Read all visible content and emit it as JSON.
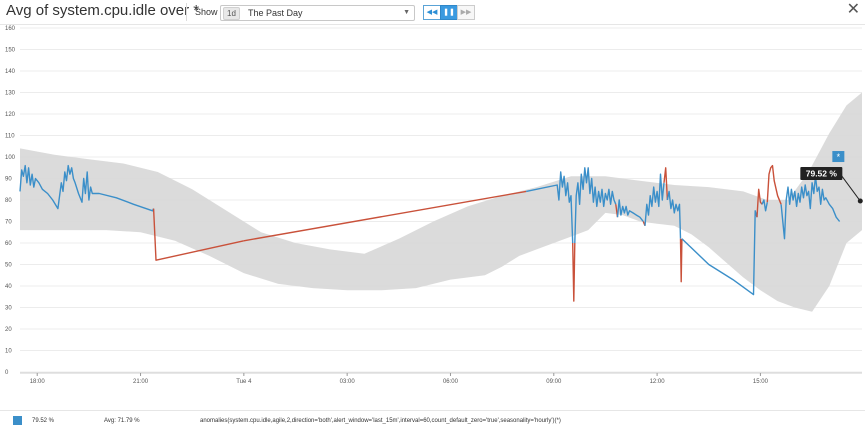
{
  "header": {
    "title": "Avg of system.cpu.idle over *",
    "show_label": "Show",
    "timeframe_badge": "1d",
    "timeframe_label": "The Past Day",
    "dropdown_arrow": "▼",
    "controls": [
      {
        "name": "rewind-button",
        "glyph": "◀◀",
        "state": "normal"
      },
      {
        "name": "pause-button",
        "glyph": "❚❚",
        "state": "active"
      },
      {
        "name": "fast-forward-button",
        "glyph": "▶▶",
        "state": "disabled"
      }
    ],
    "close_glyph": "✕"
  },
  "colors": {
    "series": "#3b8fc9",
    "anomaly": "#c9513a",
    "band": "#d9d9d9",
    "grid": "#ececec"
  },
  "chart_data": {
    "type": "line",
    "ylim": [
      0,
      160
    ],
    "yticks": [
      0,
      10,
      20,
      30,
      40,
      50,
      60,
      70,
      80,
      90,
      100,
      110,
      120,
      130,
      140,
      150,
      160
    ],
    "x_range": [
      17.5,
      41.95
    ],
    "xticks": [
      {
        "label": "18:00",
        "x": 18
      },
      {
        "label": "21:00",
        "x": 21
      },
      {
        "label": "Tue 4",
        "x": 24
      },
      {
        "label": "03:00",
        "x": 27
      },
      {
        "label": "06:00",
        "x": 30
      },
      {
        "label": "09:00",
        "x": 33
      },
      {
        "label": "12:00",
        "x": 36
      },
      {
        "label": "15:00",
        "x": 39
      }
    ],
    "band_upper": [
      [
        17.5,
        104
      ],
      [
        18.5,
        101
      ],
      [
        19.5,
        99
      ],
      [
        20.5,
        97
      ],
      [
        21.5,
        93
      ],
      [
        22.5,
        85
      ],
      [
        23.5,
        75
      ],
      [
        24.5,
        65
      ],
      [
        25.5,
        60
      ],
      [
        26.5,
        57
      ],
      [
        27.5,
        55
      ],
      [
        28.5,
        62
      ],
      [
        29.5,
        70
      ],
      [
        30.5,
        77
      ],
      [
        31.5,
        82
      ],
      [
        32.5,
        86
      ],
      [
        33.5,
        91
      ],
      [
        34.5,
        91
      ],
      [
        35.5,
        89
      ],
      [
        36.5,
        87
      ],
      [
        37.5,
        86
      ],
      [
        38.5,
        84
      ],
      [
        39.2,
        80
      ],
      [
        39.8,
        80
      ],
      [
        40.4,
        93
      ],
      [
        41.0,
        111
      ],
      [
        41.5,
        124
      ],
      [
        41.95,
        130
      ]
    ],
    "band_lower": [
      [
        41.95,
        66
      ],
      [
        41.5,
        60
      ],
      [
        41.0,
        40
      ],
      [
        40.5,
        28
      ],
      [
        40.0,
        30
      ],
      [
        39.5,
        33
      ],
      [
        39.0,
        38
      ],
      [
        38.5,
        44
      ],
      [
        38.0,
        51
      ],
      [
        37.5,
        58
      ],
      [
        37.0,
        64
      ],
      [
        36.5,
        68
      ],
      [
        36.0,
        69
      ],
      [
        35.5,
        70
      ],
      [
        35.0,
        73
      ],
      [
        34.5,
        74
      ],
      [
        34.0,
        66
      ],
      [
        33.5,
        63
      ],
      [
        33.0,
        60
      ],
      [
        32.5,
        57
      ],
      [
        32.0,
        54
      ],
      [
        31.5,
        49
      ],
      [
        31.0,
        45
      ],
      [
        30.0,
        43
      ],
      [
        29.0,
        39
      ],
      [
        28.0,
        38
      ],
      [
        27.0,
        38
      ],
      [
        26.0,
        39
      ],
      [
        25.0,
        41
      ],
      [
        24.0,
        46
      ],
      [
        23.0,
        54
      ],
      [
        22.0,
        61
      ],
      [
        21.0,
        65
      ],
      [
        20.0,
        66
      ],
      [
        19.0,
        66
      ],
      [
        18.0,
        66
      ],
      [
        17.5,
        66
      ]
    ],
    "series": [
      {
        "name": "system.cpu.idle",
        "segments": [
          {
            "type": "normal",
            "points": [
              [
                17.5,
                84
              ],
              [
                17.55,
                94
              ],
              [
                17.6,
                91
              ],
              [
                17.65,
                96
              ],
              [
                17.7,
                88
              ],
              [
                17.75,
                95
              ],
              [
                17.8,
                87
              ],
              [
                17.85,
                92
              ],
              [
                17.9,
                86
              ],
              [
                17.95,
                90
              ],
              [
                18.05,
                88
              ],
              [
                18.15,
                85
              ],
              [
                18.3,
                83
              ],
              [
                18.45,
                80
              ],
              [
                18.6,
                76
              ],
              [
                18.7,
                88
              ],
              [
                18.75,
                84
              ],
              [
                18.8,
                93
              ],
              [
                18.85,
                89
              ],
              [
                18.9,
                96
              ],
              [
                18.95,
                92
              ],
              [
                19.0,
                95
              ],
              [
                19.05,
                90
              ],
              [
                19.1,
                88
              ],
              [
                19.2,
                83
              ],
              [
                19.3,
                79
              ],
              [
                19.35,
                90
              ],
              [
                19.4,
                83
              ],
              [
                19.45,
                93
              ],
              [
                19.5,
                80
              ],
              [
                19.55,
                86
              ],
              [
                19.6,
                83
              ],
              [
                19.8,
                83
              ],
              [
                20.3,
                81
              ],
              [
                20.8,
                78
              ],
              [
                21.35,
                75
              ],
              [
                21.38,
                76
              ]
            ]
          },
          {
            "type": "anomaly",
            "points": [
              [
                21.38,
                76
              ],
              [
                21.45,
                52
              ],
              [
                24.0,
                61
              ]
            ]
          },
          {
            "type": "normal",
            "points": [
              [
                24.0,
                61
              ]
            ]
          },
          {
            "type": "anomaly",
            "points": [
              [
                24.0,
                61
              ],
              [
                32.2,
                84
              ]
            ]
          },
          {
            "type": "normal",
            "points": [
              [
                32.2,
                84
              ],
              [
                33.1,
                87
              ],
              [
                33.15,
                80
              ],
              [
                33.2,
                93
              ],
              [
                33.25,
                86
              ],
              [
                33.3,
                91
              ],
              [
                33.35,
                82
              ],
              [
                33.4,
                88
              ],
              [
                33.45,
                79
              ],
              [
                33.5,
                82
              ],
              [
                33.55,
                60
              ]
            ]
          },
          {
            "type": "anomaly",
            "points": [
              [
                33.55,
                60
              ],
              [
                33.58,
                33
              ],
              [
                33.61,
                60
              ]
            ]
          },
          {
            "type": "normal",
            "points": [
              [
                33.61,
                60
              ],
              [
                33.65,
                82
              ],
              [
                33.7,
                88
              ],
              [
                33.75,
                78
              ],
              [
                33.8,
                92
              ],
              [
                33.85,
                85
              ],
              [
                33.9,
                95
              ],
              [
                33.95,
                88
              ],
              [
                34.0,
                95
              ],
              [
                34.05,
                83
              ],
              [
                34.1,
                90
              ],
              [
                34.15,
                79
              ],
              [
                34.2,
                86
              ],
              [
                34.25,
                77
              ],
              [
                34.3,
                84
              ],
              [
                34.35,
                79
              ],
              [
                34.4,
                85
              ],
              [
                34.45,
                77
              ],
              [
                34.5,
                83
              ],
              [
                34.55,
                80
              ],
              [
                34.6,
                85
              ],
              [
                34.65,
                78
              ],
              [
                34.7,
                84
              ],
              [
                34.75,
                80
              ],
              [
                34.8,
                78
              ]
            ]
          },
          {
            "type": "anomaly",
            "points": [
              [
                34.8,
                78
              ],
              [
                34.85,
                72
              ]
            ]
          },
          {
            "type": "normal",
            "points": [
              [
                34.85,
                72
              ],
              [
                34.9,
                80
              ],
              [
                34.95,
                73
              ],
              [
                35.0,
                77
              ],
              [
                35.05,
                74
              ],
              [
                35.1,
                77
              ],
              [
                35.15,
                73
              ],
              [
                35.2,
                75
              ],
              [
                35.3,
                74
              ],
              [
                35.4,
                73
              ],
              [
                35.5,
                72
              ],
              [
                35.6,
                70
              ]
            ]
          },
          {
            "type": "anomaly",
            "points": [
              [
                35.6,
                70
              ],
              [
                35.65,
                68
              ]
            ]
          },
          {
            "type": "normal",
            "points": [
              [
                35.65,
                68
              ],
              [
                35.7,
                78
              ],
              [
                35.75,
                73
              ],
              [
                35.8,
                82
              ],
              [
                35.85,
                77
              ],
              [
                35.9,
                86
              ],
              [
                35.95,
                79
              ],
              [
                36.0,
                84
              ],
              [
                36.05,
                77
              ],
              [
                36.1,
                92
              ],
              [
                36.15,
                80
              ],
              [
                36.2,
                88
              ]
            ]
          },
          {
            "type": "anomaly",
            "points": [
              [
                36.2,
                88
              ],
              [
                36.25,
                95
              ],
              [
                36.3,
                80
              ]
            ]
          },
          {
            "type": "normal",
            "points": [
              [
                36.3,
                80
              ],
              [
                36.35,
                84
              ],
              [
                36.4,
                76
              ],
              [
                36.45,
                80
              ],
              [
                36.5,
                74
              ],
              [
                36.55,
                78
              ],
              [
                36.6,
                75
              ],
              [
                36.65,
                78
              ],
              [
                36.68,
                62
              ]
            ]
          },
          {
            "type": "anomaly",
            "points": [
              [
                36.68,
                62
              ],
              [
                36.7,
                42
              ],
              [
                36.72,
                62
              ]
            ]
          },
          {
            "type": "normal",
            "points": [
              [
                36.72,
                62
              ],
              [
                37.5,
                50
              ],
              [
                38.2,
                43
              ],
              [
                38.8,
                36
              ],
              [
                38.85,
                75
              ],
              [
                38.9,
                72
              ]
            ]
          },
          {
            "type": "anomaly",
            "points": [
              [
                38.9,
                72
              ],
              [
                38.95,
                85
              ],
              [
                39.0,
                79
              ],
              [
                39.05,
                78
              ]
            ]
          },
          {
            "type": "normal",
            "points": [
              [
                39.05,
                78
              ],
              [
                39.1,
                80
              ],
              [
                39.15,
                75
              ],
              [
                39.2,
                79
              ]
            ]
          },
          {
            "type": "anomaly",
            "points": [
              [
                39.2,
                79
              ],
              [
                39.25,
                92
              ],
              [
                39.3,
                95
              ],
              [
                39.35,
                96
              ],
              [
                39.4,
                89
              ],
              [
                39.5,
                82
              ],
              [
                39.6,
                78
              ]
            ]
          },
          {
            "type": "normal",
            "points": [
              [
                39.6,
                78
              ],
              [
                39.65,
                70
              ],
              [
                39.7,
                62
              ],
              [
                39.75,
                80
              ],
              [
                39.8,
                86
              ],
              [
                39.85,
                78
              ],
              [
                39.9,
                85
              ],
              [
                39.95,
                80
              ],
              [
                40.0,
                84
              ],
              [
                40.05,
                77
              ],
              [
                40.1,
                83
              ],
              [
                40.15,
                79
              ],
              [
                40.2,
                86
              ],
              [
                40.25,
                81
              ],
              [
                40.3,
                87
              ],
              [
                40.35,
                82
              ],
              [
                40.4,
                84
              ],
              [
                40.45,
                76
              ],
              [
                40.5,
                88
              ],
              [
                40.55,
                83
              ],
              [
                40.6,
                91
              ],
              [
                40.65,
                84
              ],
              [
                40.7,
                86
              ],
              [
                40.75,
                78
              ],
              [
                40.8,
                85
              ],
              [
                40.85,
                80
              ],
              [
                40.9,
                81
              ],
              [
                41.0,
                78
              ],
              [
                41.1,
                76
              ],
              [
                41.2,
                72
              ],
              [
                41.3,
                70
              ]
            ]
          }
        ]
      }
    ],
    "tooltip": {
      "label": "79.52 %",
      "badge": "*",
      "x": 40.45,
      "y": 79.52
    },
    "end_marker": {
      "from": [
        41.3,
        79.52
      ],
      "to": [
        41.9,
        79.52
      ]
    }
  },
  "legend": {
    "last_value": "79.52 %",
    "avg": "Avg: 71.79 %",
    "query": "anomalies(system.cpu.idle,agile,2,direction='both',alert_window='last_15m',interval=60,count_default_zero='true',seasonality='hourly')(*)"
  }
}
